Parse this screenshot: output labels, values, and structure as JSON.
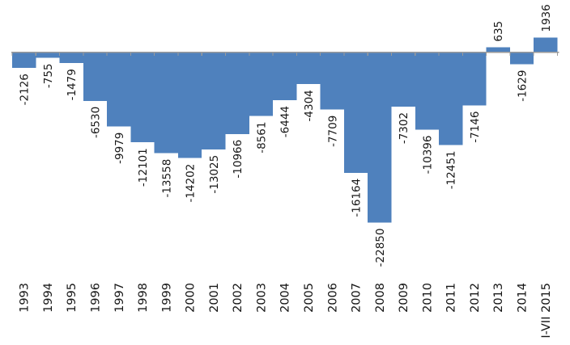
{
  "chart_data": {
    "type": "bar",
    "title": "",
    "xlabel": "",
    "ylabel": "",
    "categories": [
      "1993",
      "1994",
      "1995",
      "1996",
      "1997",
      "1998",
      "1999",
      "2000",
      "2001",
      "2002",
      "2003",
      "2004",
      "2005",
      "2006",
      "2007",
      "2008",
      "2009",
      "2010",
      "2011",
      "2012",
      "2013",
      "2014",
      "I-VII 2015"
    ],
    "values": [
      -2126,
      -755,
      -1479,
      -6530,
      -9979,
      -12101,
      -13558,
      -14202,
      -13025,
      -10966,
      -8561,
      -6444,
      -4304,
      -7709,
      -16164,
      -22850,
      -7302,
      -10396,
      -12451,
      -7146,
      635,
      -1629,
      1936
    ],
    "value_labels": [
      "-2126",
      "-755",
      "-1479",
      "-6530",
      "-9979",
      "-12101",
      "-13558",
      "-14202",
      "-13025",
      "-10966",
      "-8561",
      "-6444",
      "-4304",
      "-7709",
      "-16164",
      "-22850",
      "-7302",
      "-10396",
      "-12451",
      "-7146",
      "635",
      "-1629",
      "1936"
    ],
    "ylim": [
      -24000,
      2500
    ],
    "grid": false,
    "legend": false,
    "bar_gap": 0,
    "value_labels_position": "outside-end",
    "label_rotation_deg": 90,
    "colors": {
      "bar": "#4f81bd",
      "axis": "#9a9a9a",
      "text": "#161616"
    }
  }
}
